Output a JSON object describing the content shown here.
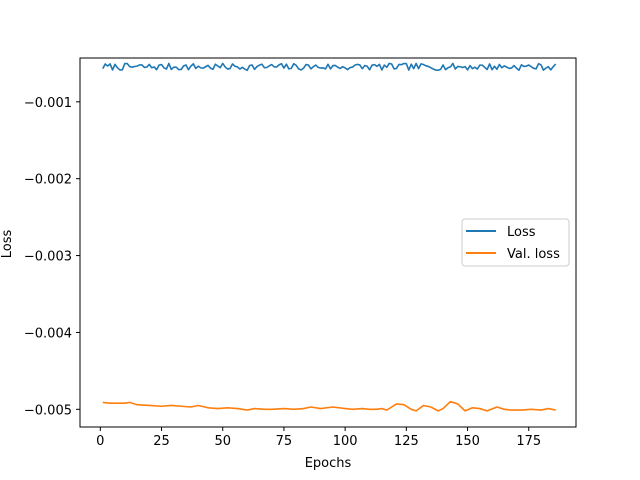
{
  "chart_data": {
    "type": "line",
    "xlabel": "Epochs",
    "ylabel": "Loss",
    "xlim": [
      -8.3,
      194.3
    ],
    "ylim": [
      -0.00523,
      -0.00043
    ],
    "xticks": [
      0,
      25,
      50,
      75,
      100,
      125,
      150,
      175
    ],
    "xtick_labels": [
      "0",
      "25",
      "50",
      "75",
      "100",
      "125",
      "150",
      "175"
    ],
    "yticks": [
      -0.001,
      -0.002,
      -0.003,
      -0.004,
      -0.005
    ],
    "ytick_labels": [
      "−0.001",
      "−0.002",
      "−0.003",
      "−0.004",
      "−0.005"
    ],
    "grid": false,
    "legend_position": "center-right",
    "series": [
      {
        "name": "Loss",
        "color": "#1f77b4",
        "x_start": 1,
        "x_end": 186,
        "base": -0.000545,
        "amplitude": 4.5e-05,
        "seed": 7,
        "kind": "noisy"
      },
      {
        "name": "Val. loss",
        "color": "#ff7f0e",
        "kind": "keyed",
        "points": [
          [
            1,
            -0.00491
          ],
          [
            4,
            -0.00492
          ],
          [
            7,
            -0.00492
          ],
          [
            10,
            -0.00492
          ],
          [
            12,
            -0.00491
          ],
          [
            15,
            -0.00494
          ],
          [
            20,
            -0.00495
          ],
          [
            25,
            -0.00496
          ],
          [
            29,
            -0.00495
          ],
          [
            33,
            -0.00496
          ],
          [
            37,
            -0.00497
          ],
          [
            40,
            -0.00495
          ],
          [
            44,
            -0.00498
          ],
          [
            48,
            -0.00499
          ],
          [
            52,
            -0.00498
          ],
          [
            56,
            -0.00499
          ],
          [
            60,
            -0.00501
          ],
          [
            63,
            -0.00499
          ],
          [
            67,
            -0.005
          ],
          [
            70,
            -0.005
          ],
          [
            75,
            -0.00499
          ],
          [
            79,
            -0.005
          ],
          [
            83,
            -0.00499
          ],
          [
            86,
            -0.00497
          ],
          [
            90,
            -0.00499
          ],
          [
            95,
            -0.00497
          ],
          [
            100,
            -0.00499
          ],
          [
            103,
            -0.005
          ],
          [
            107,
            -0.00499
          ],
          [
            110,
            -0.005
          ],
          [
            113,
            -0.005
          ],
          [
            115,
            -0.00499
          ],
          [
            117,
            -0.00501
          ],
          [
            119,
            -0.00497
          ],
          [
            121,
            -0.00493
          ],
          [
            124,
            -0.00494
          ],
          [
            127,
            -0.005
          ],
          [
            129,
            -0.00502
          ],
          [
            132,
            -0.00495
          ],
          [
            135,
            -0.00497
          ],
          [
            138,
            -0.00502
          ],
          [
            140,
            -0.00499
          ],
          [
            143,
            -0.0049
          ],
          [
            146,
            -0.00493
          ],
          [
            149,
            -0.00502
          ],
          [
            152,
            -0.00498
          ],
          [
            155,
            -0.00499
          ],
          [
            158,
            -0.00502
          ],
          [
            162,
            -0.00497
          ],
          [
            165,
            -0.005
          ],
          [
            168,
            -0.00501
          ],
          [
            172,
            -0.00501
          ],
          [
            176,
            -0.005
          ],
          [
            180,
            -0.00501
          ],
          [
            183,
            -0.00499
          ],
          [
            186,
            -0.00501
          ]
        ]
      }
    ]
  }
}
